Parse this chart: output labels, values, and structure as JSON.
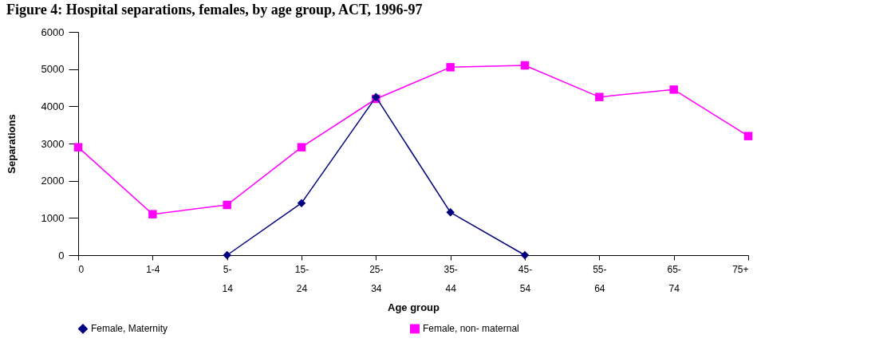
{
  "chart_data": {
    "type": "line",
    "title": "Figure 4: Hospital separations, females, by age group, ACT, 1996-97",
    "xlabel": "Age group",
    "ylabel": "Separations",
    "categories": [
      "0",
      "1-4",
      "5-14",
      "15-24",
      "25-34",
      "35-44",
      "45-54",
      "55-64",
      "65-74",
      "75+"
    ],
    "series": [
      {
        "name": "Female, Maternity",
        "color": "#000080",
        "marker": "diamond",
        "values": [
          null,
          null,
          0,
          1400,
          4250,
          1150,
          0,
          null,
          null,
          null
        ]
      },
      {
        "name": "Female, non- maternal",
        "color": "#ff00ff",
        "marker": "square",
        "values": [
          2900,
          1100,
          1350,
          2900,
          4200,
          5050,
          5100,
          4250,
          4450,
          3200
        ]
      }
    ],
    "ylim": [
      0,
      6000
    ],
    "yticks": [
      0,
      1000,
      2000,
      3000,
      4000,
      5000,
      6000
    ],
    "grid": false,
    "legend": "bottom",
    "line_style": "solid"
  }
}
